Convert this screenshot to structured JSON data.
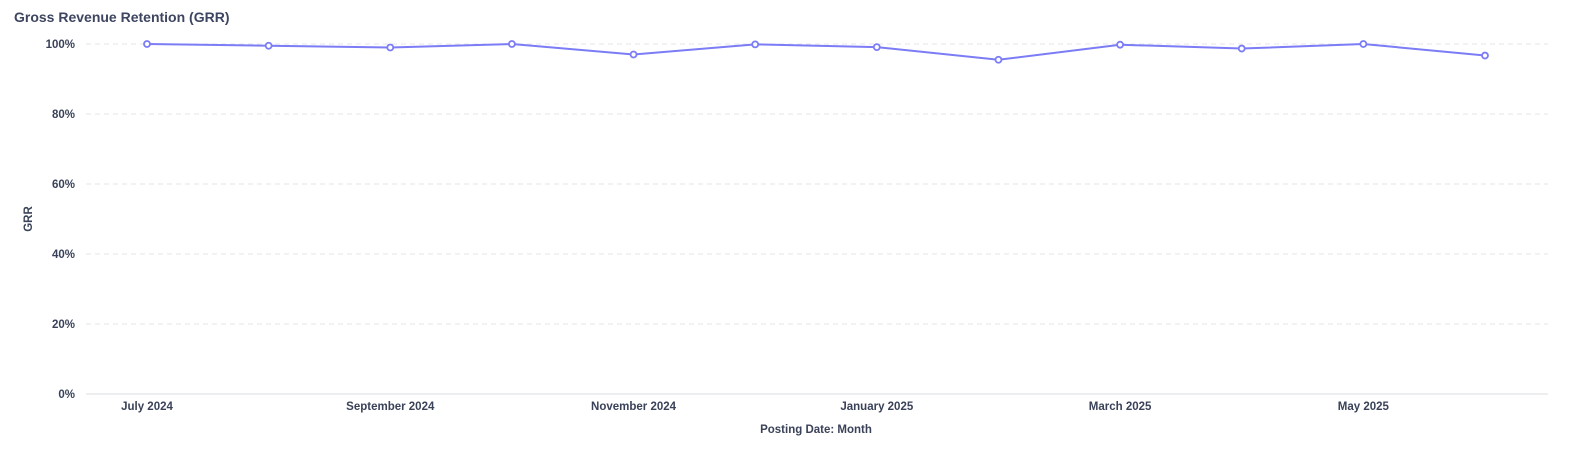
{
  "chart_data": {
    "type": "line",
    "title": "Gross Revenue Retention (GRR)",
    "xlabel": "Posting Date: Month",
    "ylabel": "GRR",
    "x": [
      "2024-07",
      "2024-08",
      "2024-09",
      "2024-10",
      "2024-11",
      "2024-12",
      "2025-01",
      "2025-02",
      "2025-03",
      "2025-04",
      "2025-05",
      "2025-06"
    ],
    "x_tick_labels": [
      {
        "x": "2024-07",
        "label": "July 2024"
      },
      {
        "x": "2024-09",
        "label": "September 2024"
      },
      {
        "x": "2024-11",
        "label": "November 2024"
      },
      {
        "x": "2025-01",
        "label": "January 2025"
      },
      {
        "x": "2025-03",
        "label": "March 2025"
      },
      {
        "x": "2025-05",
        "label": "May 2025"
      }
    ],
    "y_ticks": [
      0,
      20,
      40,
      60,
      80,
      100
    ],
    "y_tick_labels": [
      "0%",
      "20%",
      "40%",
      "60%",
      "80%",
      "100%"
    ],
    "ylim": [
      0,
      100
    ],
    "grid": true,
    "series": [
      {
        "values": [
          100.0,
          99.5,
          99.0,
          100.0,
          97.0,
          99.9,
          99.1,
          95.5,
          99.8,
          98.7,
          100.0,
          96.7
        ]
      }
    ],
    "colors": {
      "line": "#7b7cf6",
      "marker_fill": "#ffffff",
      "grid": "#e4e6eb",
      "axis": "#d9dce2"
    }
  }
}
